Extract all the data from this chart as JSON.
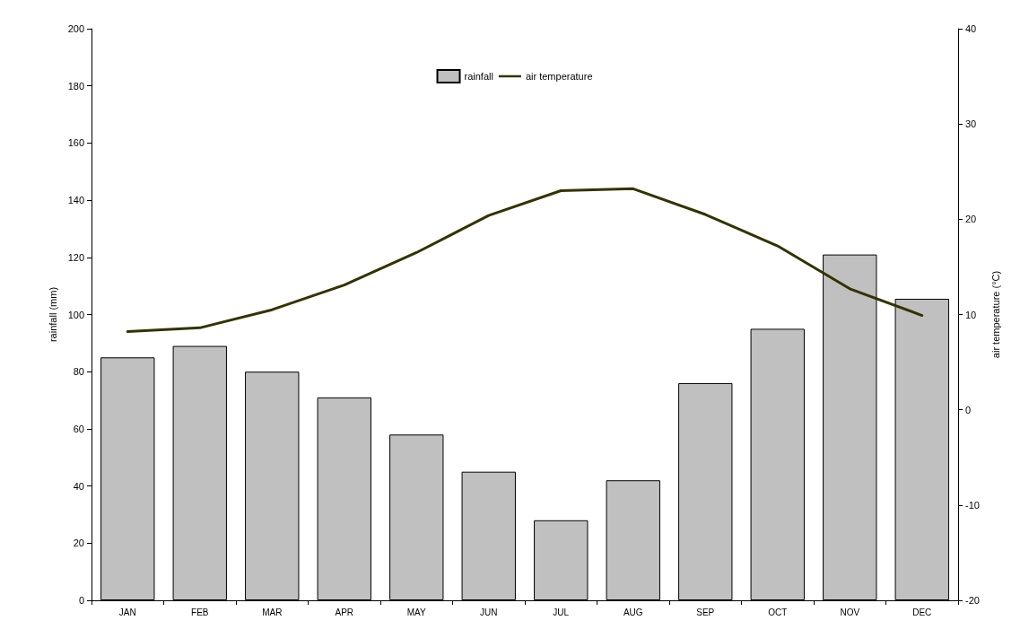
{
  "chart_data": {
    "type": "bar",
    "categories": [
      "JAN",
      "FEB",
      "MAR",
      "APR",
      "MAY",
      "JUN",
      "JUL",
      "AUG",
      "SEP",
      "OCT",
      "NOV",
      "DEC"
    ],
    "series": [
      {
        "name": "rainfall",
        "color": "#c0c0c0",
        "values": [
          85,
          89,
          80,
          71,
          58,
          45,
          28,
          42,
          76,
          95,
          121,
          105.5
        ]
      },
      {
        "name": "air temperature",
        "type": "line",
        "axis": "y2",
        "color": "#333300",
        "values": [
          8.2,
          8.6,
          10.5,
          13.1,
          16.5,
          20.4,
          23.0,
          23.2,
          20.5,
          17.2,
          12.7,
          9.9
        ]
      }
    ],
    "ylabel": "rainfall (mm)",
    "y2label": "air temperature (°C)",
    "ylim": [
      0,
      200
    ],
    "yticks": [
      0,
      20,
      40,
      60,
      80,
      100,
      120,
      140,
      160,
      180,
      200
    ],
    "y2lim": [
      -20,
      40
    ],
    "y2ticks": [
      -20,
      -10,
      0,
      10,
      20,
      30,
      40
    ],
    "legend": "top",
    "grid": false,
    "marker": "none",
    "line_style": "solid"
  }
}
